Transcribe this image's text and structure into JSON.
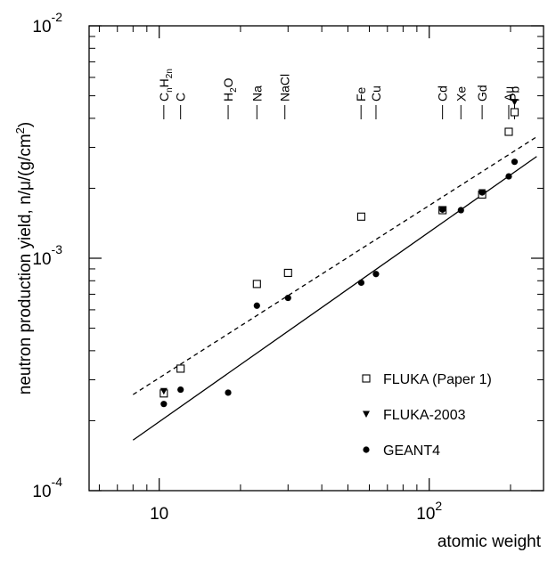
{
  "chart_data": {
    "type": "scatter",
    "xlabel": "atomic weight",
    "ylabel": "neutron production yield, n/μ/(g/cm²)",
    "xscale": "log",
    "yscale": "log",
    "xlim": [
      5.5,
      265
    ],
    "ylim": [
      0.0001,
      0.01
    ],
    "x_ticks": [
      {
        "value": 10,
        "label": "10",
        "sup": ""
      },
      {
        "value": 100,
        "label": "10",
        "sup": "2"
      }
    ],
    "y_ticks": [
      {
        "value": 0.0001,
        "label": "10",
        "sup": "-4"
      },
      {
        "value": 0.001,
        "label": "10",
        "sup": "-3"
      },
      {
        "value": 0.01,
        "label": "10",
        "sup": "-2"
      }
    ],
    "materials": [
      {
        "name": "C",
        "sub1": "n",
        "mid": "H",
        "sub2": "2n",
        "x": 10.4
      },
      {
        "name": "C",
        "sub1": "",
        "mid": "",
        "sub2": "",
        "x": 12
      },
      {
        "name": "H",
        "sub1": "2",
        "mid": "O",
        "sub2": "",
        "x": 18
      },
      {
        "name": "Na",
        "sub1": "",
        "mid": "",
        "sub2": "",
        "x": 23
      },
      {
        "name": "NaCl",
        "sub1": "",
        "mid": "",
        "sub2": "",
        "x": 29.2
      },
      {
        "name": "Fe",
        "sub1": "",
        "mid": "",
        "sub2": "",
        "x": 55.9
      },
      {
        "name": "Cu",
        "sub1": "",
        "mid": "",
        "sub2": "",
        "x": 63.5
      },
      {
        "name": "Cd",
        "sub1": "",
        "mid": "",
        "sub2": "",
        "x": 112
      },
      {
        "name": "Xe",
        "sub1": "",
        "mid": "",
        "sub2": "",
        "x": 131
      },
      {
        "name": "Gd",
        "sub1": "",
        "mid": "",
        "sub2": "",
        "x": 157
      },
      {
        "name": "Au",
        "sub1": "",
        "mid": "",
        "sub2": "",
        "x": 197
      },
      {
        "name": "Pb",
        "sub1": "",
        "mid": "",
        "sub2": "",
        "x": 207
      }
    ],
    "series": [
      {
        "name": "FLUKA (Paper 1)",
        "marker": "open-square",
        "points": [
          [
            10.4,
            0.000262
          ],
          [
            12,
            0.000335
          ],
          [
            23,
            0.000775
          ],
          [
            30,
            0.000865
          ],
          [
            56,
            0.00151
          ],
          [
            112,
            0.00161
          ],
          [
            157,
            0.00188
          ],
          [
            197,
            0.0035
          ],
          [
            207,
            0.00425
          ]
        ]
      },
      {
        "name": "FLUKA-2003",
        "marker": "filled-triangle-down",
        "points": [
          [
            10.4,
            0.000268
          ],
          [
            112,
            0.00162
          ],
          [
            157,
            0.00192
          ],
          [
            207,
            0.0047
          ]
        ]
      },
      {
        "name": "GEANT4",
        "marker": "filled-circle",
        "points": [
          [
            10.4,
            0.000236
          ],
          [
            12,
            0.000272
          ],
          [
            18,
            0.000264
          ],
          [
            23,
            0.000625
          ],
          [
            30,
            0.000675
          ],
          [
            56,
            0.000785
          ],
          [
            63.5,
            0.000855
          ],
          [
            112,
            0.00162
          ],
          [
            131,
            0.00161
          ],
          [
            157,
            0.00192
          ],
          [
            197,
            0.00225
          ],
          [
            207,
            0.0026
          ]
        ]
      }
    ],
    "fits": [
      {
        "style": "dashed",
        "x": [
          8,
          250
        ],
        "y": [
          0.000259,
          0.00333
        ]
      },
      {
        "style": "solid",
        "x": [
          8,
          250
        ],
        "y": [
          0.000165,
          0.00274
        ]
      }
    ],
    "legend_position": "bottom-right"
  }
}
